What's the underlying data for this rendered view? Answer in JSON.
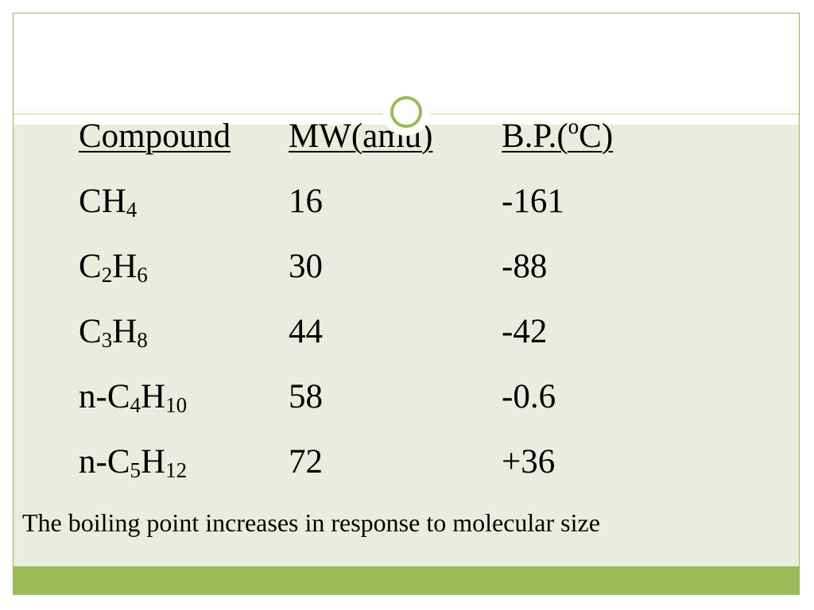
{
  "table": {
    "headers": {
      "compound": "Compound",
      "mw": "MW(amu)",
      "bp_prefix": "B.P.(",
      "bp_degree": "o",
      "bp_suffix": "C)"
    },
    "rows": [
      {
        "compound": {
          "parts": [
            [
              "C",
              ""
            ],
            [
              "H",
              "4"
            ]
          ],
          "prefix": ""
        },
        "mw": "16",
        "bp": "-161"
      },
      {
        "compound": {
          "parts": [
            [
              "C",
              "2"
            ],
            [
              "H",
              "6"
            ]
          ],
          "prefix": ""
        },
        "mw": "30",
        "bp": "-88"
      },
      {
        "compound": {
          "parts": [
            [
              "C",
              "3"
            ],
            [
              "H",
              "8"
            ]
          ],
          "prefix": ""
        },
        "mw": "44",
        "bp": "-42"
      },
      {
        "compound": {
          "parts": [
            [
              "C",
              "4"
            ],
            [
              "H",
              "10"
            ]
          ],
          "prefix": "n-"
        },
        "mw": "58",
        "bp": "-0.6"
      },
      {
        "compound": {
          "parts": [
            [
              "C",
              "5"
            ],
            [
              "H",
              "12"
            ]
          ],
          "prefix": "n-"
        },
        "mw": "72",
        "bp": "+36"
      }
    ]
  },
  "caption": "The boiling point increases in response to molecular size",
  "colors": {
    "accent": "#9bbb59",
    "content_background": "#ecebe0"
  }
}
